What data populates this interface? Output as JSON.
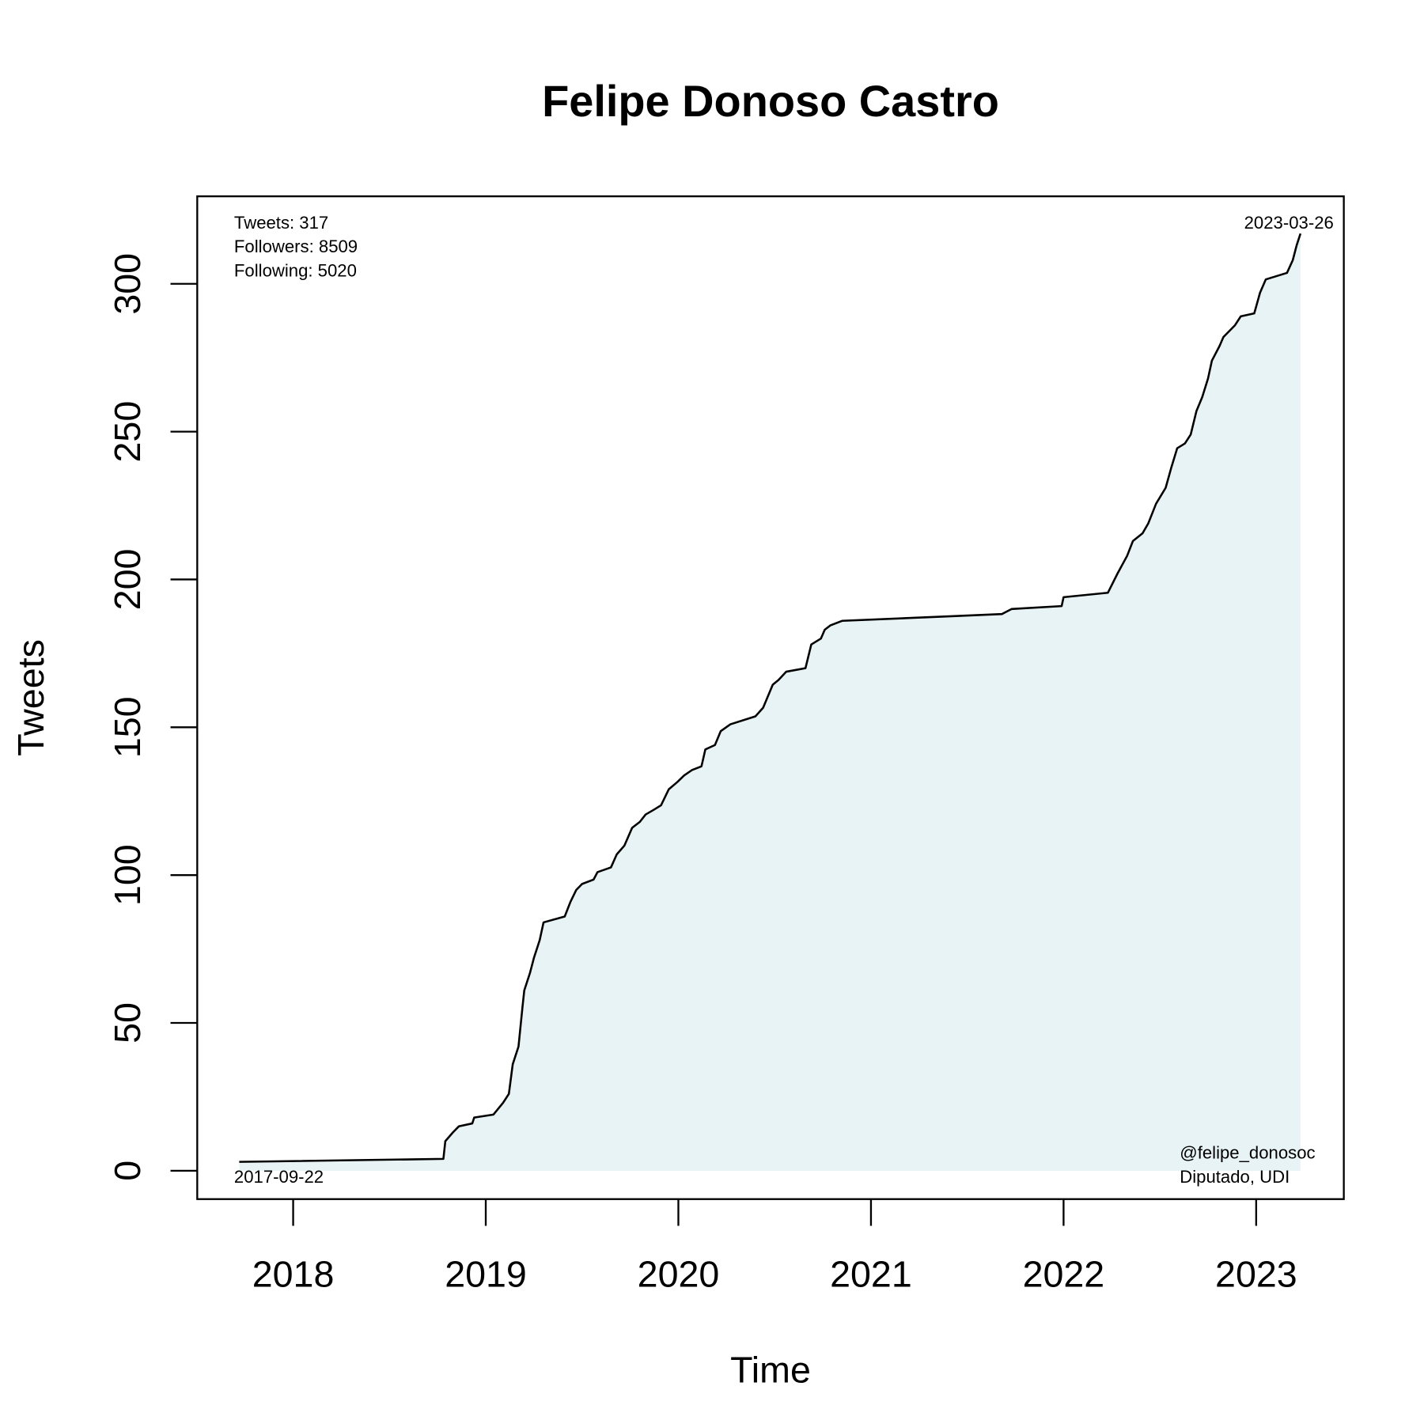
{
  "chart_data": {
    "type": "area",
    "title": "Felipe Donoso Castro",
    "xlabel": "Time",
    "ylabel": "Tweets",
    "x": [
      2017.72,
      2018.78,
      2018.79,
      2018.83,
      2018.86,
      2018.93,
      2018.94,
      2019.04,
      2019.09,
      2019.12,
      2019.14,
      2019.17,
      2019.19,
      2019.2,
      2019.23,
      2019.25,
      2019.28,
      2019.3,
      2019.41,
      2019.44,
      2019.47,
      2019.5,
      2019.56,
      2019.58,
      2019.65,
      2019.68,
      2019.72,
      2019.76,
      2019.8,
      2019.83,
      2019.87,
      2019.91,
      2019.95,
      2019.995,
      2020.03,
      2020.07,
      2020.12,
      2020.14,
      2020.19,
      2020.22,
      2020.27,
      2020.4,
      2020.44,
      2020.49,
      2020.52,
      2020.56,
      2020.66,
      2020.69,
      2020.74,
      2020.76,
      2020.79,
      2020.85,
      2021.43,
      2021.68,
      2021.73,
      2021.99,
      2022.0,
      2022.23,
      2022.28,
      2022.33,
      2022.36,
      2022.41,
      2022.44,
      2022.48,
      2022.53,
      2022.56,
      2022.59,
      2022.63,
      2022.66,
      2022.69,
      2022.72,
      2022.75,
      2022.77,
      2022.81,
      2022.83,
      2022.89,
      2022.92,
      2022.99,
      2023.02,
      2023.05,
      2023.16,
      2023.19,
      2023.21,
      2023.23
    ],
    "values": [
      3,
      4,
      10,
      13,
      15,
      16,
      18,
      19,
      23,
      26,
      36,
      42,
      55,
      61,
      67,
      72,
      78,
      84,
      86,
      91,
      95,
      97,
      98.5,
      101,
      102.6,
      107,
      110,
      116,
      118,
      120.5,
      122,
      123.6,
      129,
      131.5,
      133.7,
      135.5,
      136.8,
      142.5,
      144,
      148.7,
      151,
      153.7,
      156.6,
      164.4,
      166,
      168.8,
      170,
      178,
      180,
      183,
      184.5,
      186,
      187.6,
      188.3,
      190,
      191,
      194,
      195.5,
      202,
      208,
      213,
      215.6,
      219,
      225.6,
      231,
      238,
      244.4,
      246,
      249,
      257,
      261.7,
      268,
      274,
      279,
      282,
      286,
      289,
      290,
      297,
      301.5,
      303.7,
      308,
      313,
      317
    ],
    "color": "#000000",
    "fill": "#e8f3f6",
    "xlim": [
      2017.502,
      2023.455
    ],
    "xticks": [
      2018,
      2019,
      2020,
      2021,
      2022,
      2023
    ],
    "ylim": [
      -9.6,
      329.6
    ],
    "yticks": [
      0,
      50,
      100,
      150,
      200,
      250,
      300
    ],
    "annotations": {
      "stats": [
        "Tweets: 317",
        "Followers: 8509",
        "Following: 5020"
      ],
      "start_date": "2017-09-22",
      "end_date": "2023-03-26",
      "handle": "@felipe_donosoc",
      "role": "Diputado, UDI"
    }
  }
}
